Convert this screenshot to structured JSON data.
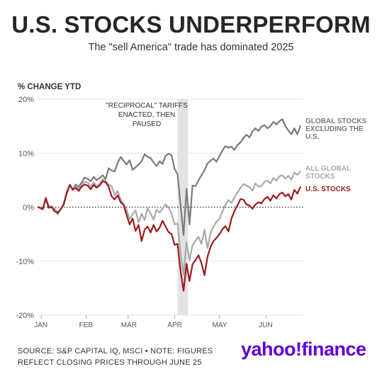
{
  "header": {
    "title": "U.S. STOCKS UNDERPERFORM",
    "subtitle": "The \"sell America\" trade has dominated 2025"
  },
  "footer": {
    "line1": "SOURCE: S&P CAPITAL IQ, MSCI • NOTE: FIGURES",
    "line2": "REFLECT CLOSING PRICES THROUGH JUNE 25"
  },
  "brand": {
    "yahoo": "yahoo",
    "bang": "!",
    "finance": "finance"
  },
  "chart_data": {
    "type": "line",
    "ylabel": "% CHANGE YTD",
    "ylim": [
      -20,
      20
    ],
    "yticks": [
      {
        "value": 20,
        "label": "20%"
      },
      {
        "value": 10,
        "label": "10%"
      },
      {
        "value": 0,
        "label": "0%"
      },
      {
        "value": -10,
        "label": "-10%"
      },
      {
        "value": -20,
        "label": "-20%"
      }
    ],
    "xticks": [
      {
        "day": 2,
        "label": "JAN"
      },
      {
        "day": 32,
        "label": "FEB"
      },
      {
        "day": 60,
        "label": "MAR"
      },
      {
        "day": 91,
        "label": "APR"
      },
      {
        "day": 121,
        "label": "MAY"
      },
      {
        "day": 152,
        "label": "JUN"
      }
    ],
    "xlim": [
      0,
      177
    ],
    "grid": true,
    "zero_line": "dotted",
    "annotation": {
      "lines": [
        "\"RECIPROCAL\" TARIFFS",
        "ENACTED, THEN",
        "PAUSED"
      ],
      "band_days": [
        93,
        100
      ]
    },
    "series": [
      {
        "name": "GLOBAL STOCKS EXCLUDING THE U.S.",
        "label_lines": [
          "GLOBAL STOCKS",
          "EXCLUDING THE",
          "U.S."
        ],
        "color": "#7a7a7a",
        "x": [
          0,
          3,
          5,
          7,
          9,
          11,
          13,
          15,
          17,
          19,
          21,
          23,
          25,
          27,
          29,
          31,
          33,
          35,
          37,
          39,
          41,
          43,
          45,
          47,
          49,
          51,
          53,
          55,
          57,
          59,
          61,
          63,
          65,
          67,
          69,
          71,
          73,
          75,
          77,
          79,
          81,
          83,
          85,
          87,
          89,
          91,
          93,
          95,
          97,
          99,
          101,
          103,
          105,
          107,
          109,
          111,
          113,
          115,
          117,
          119,
          121,
          123,
          125,
          127,
          129,
          131,
          133,
          135,
          137,
          139,
          141,
          143,
          145,
          147,
          149,
          151,
          153,
          155,
          157,
          159,
          161,
          163,
          165,
          167,
          169,
          171,
          173,
          175
        ],
        "y": [
          0,
          -0.3,
          1.6,
          0.2,
          0.1,
          -0.3,
          -1.3,
          -0.3,
          0.5,
          2.5,
          4.1,
          3.4,
          4.2,
          3.8,
          4.6,
          5.5,
          5.2,
          4.8,
          5.6,
          5.0,
          5.4,
          5.9,
          5.2,
          7.2,
          6.8,
          6.6,
          8.2,
          9.3,
          8.6,
          7.9,
          8.7,
          6.9,
          7.4,
          7.9,
          8.5,
          9.8,
          9.3,
          9.1,
          8.3,
          7.6,
          8.5,
          8.0,
          9.5,
          9.9,
          9.6,
          7.1,
          6.1,
          0.4,
          -5.2,
          3.4,
          -3.2,
          4.0,
          3.9,
          5.0,
          5.9,
          6.8,
          8.1,
          8.6,
          9.0,
          8.4,
          9.5,
          10.5,
          11.3,
          11.0,
          11.2,
          10.6,
          11.5,
          12.0,
          12.8,
          13.4,
          12.9,
          14.0,
          14.6,
          14.1,
          14.9,
          15.2,
          14.6,
          15.0,
          15.8,
          15.3,
          15.9,
          16.3,
          15.0,
          14.2,
          13.5,
          14.6,
          13.5,
          15.0
        ]
      },
      {
        "name": "ALL GLOBAL STOCKS",
        "label_lines": [
          "ALL GLOBAL",
          "STOCKS"
        ],
        "color": "#a9a9a9",
        "x": [
          0,
          3,
          5,
          7,
          9,
          11,
          13,
          15,
          17,
          19,
          21,
          23,
          25,
          27,
          29,
          31,
          33,
          35,
          37,
          39,
          41,
          43,
          45,
          47,
          49,
          51,
          53,
          55,
          57,
          59,
          61,
          63,
          65,
          67,
          69,
          71,
          73,
          75,
          77,
          79,
          81,
          83,
          85,
          87,
          89,
          91,
          93,
          95,
          97,
          99,
          101,
          103,
          105,
          107,
          109,
          111,
          113,
          115,
          117,
          119,
          121,
          123,
          125,
          127,
          129,
          131,
          133,
          135,
          137,
          139,
          141,
          143,
          145,
          147,
          149,
          151,
          153,
          155,
          157,
          159,
          161,
          163,
          165,
          167,
          169,
          171,
          173,
          175
        ],
        "y": [
          0,
          -0.2,
          1.3,
          0.1,
          0.2,
          -0.5,
          -1.0,
          -0.3,
          0.6,
          2.8,
          4.2,
          3.5,
          3.9,
          3.3,
          4.2,
          4.7,
          4.6,
          3.8,
          4.6,
          3.9,
          4.3,
          5.2,
          4.8,
          4.2,
          3.9,
          2.2,
          3.0,
          1.4,
          0.6,
          -0.5,
          -2.2,
          -1.3,
          -0.6,
          -2.8,
          -1.2,
          -2.4,
          -0.2,
          -1.2,
          -2.3,
          -0.5,
          -1.0,
          -0.3,
          0.5,
          -0.1,
          -1.2,
          -3.2,
          -3.0,
          -8.5,
          -12.5,
          -6.5,
          -9.8,
          -7.1,
          -6.2,
          -5.5,
          -6.8,
          -4.2,
          -7.6,
          -4.8,
          -3.6,
          -2.7,
          -2.2,
          -0.8,
          0.5,
          1.3,
          0.8,
          1.8,
          2.7,
          3.6,
          4.3,
          4.0,
          3.7,
          3.1,
          4.4,
          3.8,
          3.9,
          4.7,
          4.9,
          4.4,
          5.4,
          4.9,
          5.7,
          5.9,
          5.3,
          5.8,
          5.1,
          6.4,
          6.0,
          6.6
        ]
      },
      {
        "name": "U.S. STOCKS",
        "label_lines": [
          "U.S. STOCKS"
        ],
        "color": "#9b1b1f",
        "x": [
          0,
          3,
          5,
          7,
          9,
          11,
          13,
          15,
          17,
          19,
          21,
          23,
          25,
          27,
          29,
          31,
          33,
          35,
          37,
          39,
          41,
          43,
          45,
          47,
          49,
          51,
          53,
          55,
          57,
          59,
          61,
          63,
          65,
          67,
          69,
          71,
          73,
          75,
          77,
          79,
          81,
          83,
          85,
          87,
          89,
          91,
          93,
          95,
          97,
          99,
          101,
          103,
          105,
          107,
          109,
          111,
          113,
          115,
          117,
          119,
          121,
          123,
          125,
          127,
          129,
          131,
          133,
          135,
          137,
          139,
          141,
          143,
          145,
          147,
          149,
          151,
          153,
          155,
          157,
          159,
          161,
          163,
          165,
          167,
          169,
          171,
          173,
          175
        ],
        "y": [
          0,
          -0.4,
          1.7,
          -0.1,
          0.0,
          -0.8,
          -1.0,
          -0.4,
          0.5,
          2.6,
          4.1,
          3.2,
          3.6,
          3.0,
          3.8,
          4.2,
          4.0,
          3.3,
          4.1,
          3.6,
          4.0,
          4.8,
          4.6,
          3.8,
          2.0,
          1.4,
          2.2,
          0.9,
          0.4,
          -1.5,
          -3.2,
          -2.1,
          -4.4,
          -3.3,
          -6.3,
          -4.2,
          -3.6,
          -4.7,
          -3.3,
          -4.5,
          -3.8,
          -2.5,
          -3.6,
          -4.6,
          -5.0,
          -7.0,
          -6.8,
          -11.8,
          -15.5,
          -10.5,
          -13.7,
          -10.6,
          -9.8,
          -8.9,
          -10.4,
          -12.6,
          -9.2,
          -7.4,
          -6.3,
          -5.7,
          -5.0,
          -4.1,
          -3.5,
          -4.5,
          -2.1,
          -0.7,
          0.3,
          1.5,
          1.4,
          0.5,
          0.3,
          -0.3,
          0.5,
          0.9,
          0.7,
          1.5,
          1.9,
          1.2,
          2.2,
          1.6,
          2.4,
          2.7,
          2.0,
          2.4,
          1.4,
          3.2,
          2.5,
          3.7
        ]
      }
    ]
  }
}
